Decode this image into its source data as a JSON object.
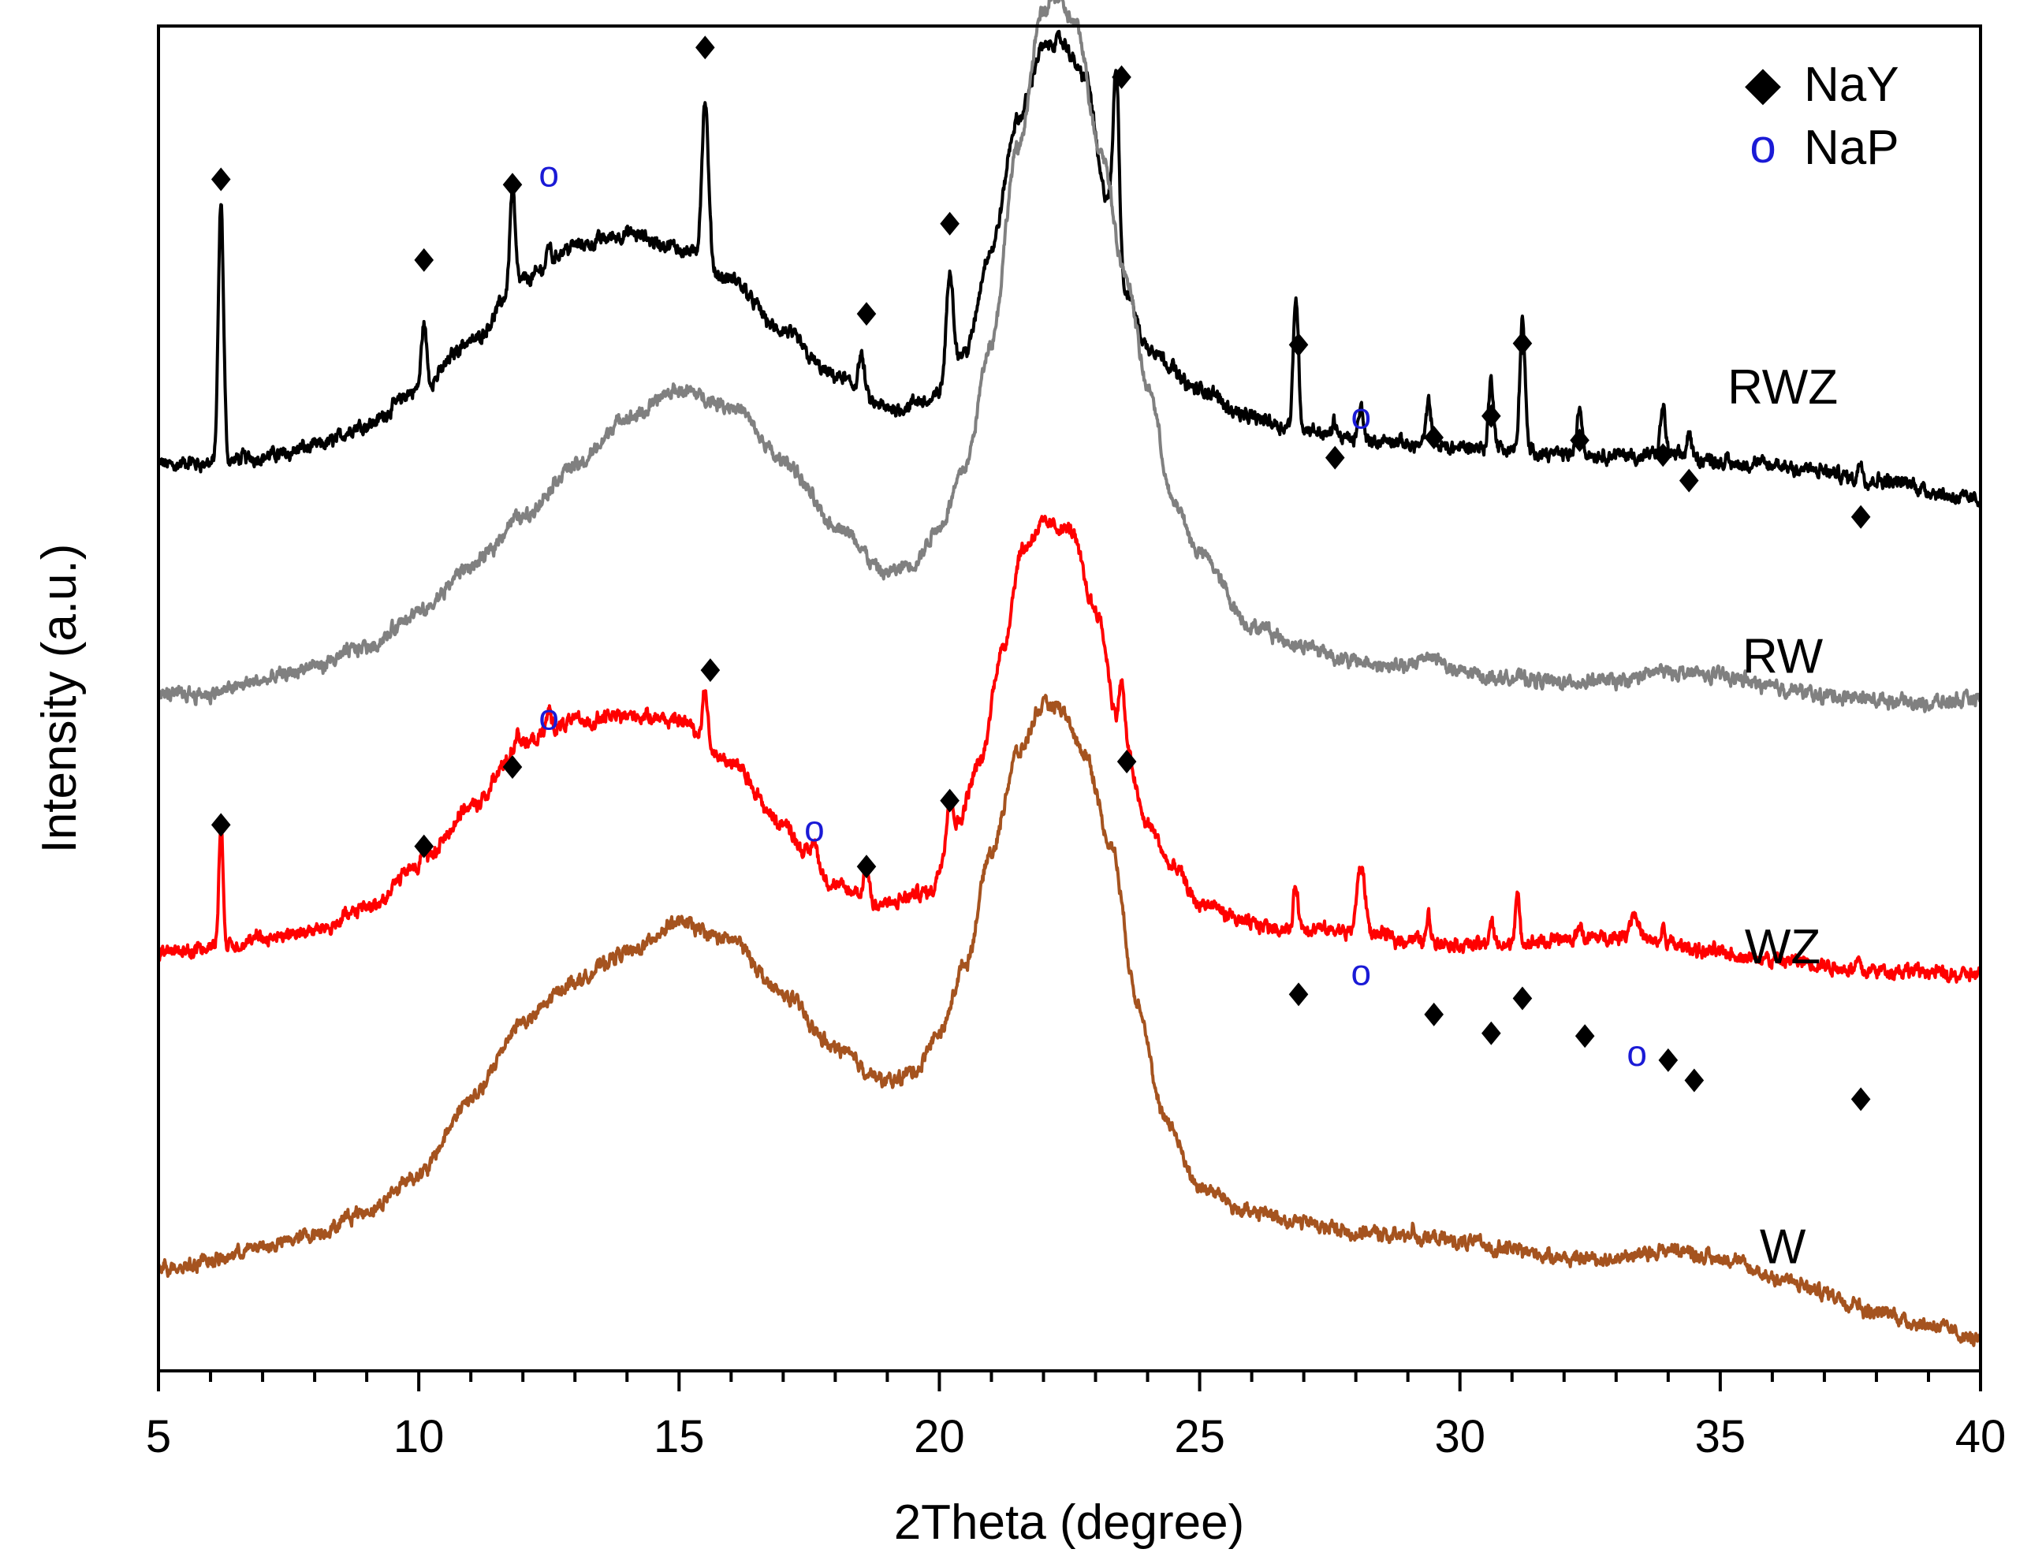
{
  "chart_data": {
    "type": "line",
    "title": "",
    "xlabel": "2Theta (degree)",
    "ylabel": "Intensity (a.u.)",
    "xlim": [
      5,
      40
    ],
    "ylim": [
      0,
      100
    ],
    "x_ticks": [
      5,
      10,
      15,
      20,
      25,
      30,
      35,
      40
    ],
    "x_tick_labels": [
      "5",
      "10",
      "15",
      "20",
      "25",
      "30",
      "35",
      "40"
    ],
    "y_ticks_shown": false,
    "grid": false,
    "legend": {
      "position": "top-right",
      "entries": [
        {
          "symbol": "◆",
          "label": "NaY",
          "color": "#000000"
        },
        {
          "symbol": "o",
          "label": "NaP",
          "color": "#1a1ad6"
        }
      ]
    },
    "series": [
      {
        "name": "RWZ",
        "color": "#000000",
        "baseline": 67.4,
        "base": [
          [
            5,
            0
          ],
          [
            6,
            0.1
          ],
          [
            7,
            0.6
          ],
          [
            8,
            1.3
          ],
          [
            9,
            3.0
          ],
          [
            10,
            5.5
          ],
          [
            11,
            9.2
          ],
          [
            12,
            13.7
          ],
          [
            13,
            16.3
          ],
          [
            14,
            17.1
          ],
          [
            15,
            16.1
          ],
          [
            16,
            13.7
          ],
          [
            17,
            9.8
          ],
          [
            18,
            6.5
          ],
          [
            19,
            4.1
          ],
          [
            19.8,
            4.7
          ],
          [
            20.5,
            8.4
          ],
          [
            21,
            16.1
          ],
          [
            21.5,
            25.5
          ],
          [
            22,
            31.0
          ],
          [
            22.3,
            31.5
          ],
          [
            22.8,
            28.9
          ],
          [
            23.2,
            20.0
          ],
          [
            23.6,
            12.7
          ],
          [
            24,
            8.7
          ],
          [
            25,
            5.5
          ],
          [
            26,
            3.5
          ],
          [
            27,
            2.6
          ],
          [
            28,
            1.8
          ],
          [
            30,
            1.3
          ],
          [
            32,
            0.8
          ],
          [
            34,
            0.6
          ],
          [
            36,
            -0.1
          ],
          [
            38,
            -1.1
          ],
          [
            40,
            -2.6
          ]
        ],
        "peaks": [
          [
            6.2,
            19.2,
            0.07
          ],
          [
            10.1,
            4.9,
            0.07
          ],
          [
            11.8,
            7.4,
            0.07
          ],
          [
            12.5,
            1.5,
            0.05
          ],
          [
            15.5,
            12.0,
            0.09
          ],
          [
            18.5,
            2.8,
            0.08
          ],
          [
            20.2,
            7.5,
            0.09
          ],
          [
            23.4,
            13.0,
            0.08
          ],
          [
            26.85,
            9.9,
            0.07
          ],
          [
            27.6,
            1.1,
            0.05
          ],
          [
            28.1,
            2.4,
            0.07
          ],
          [
            29.4,
            3.0,
            0.07
          ],
          [
            30.6,
            5.0,
            0.07
          ],
          [
            31.2,
            9.8,
            0.07
          ],
          [
            32.3,
            3.4,
            0.07
          ],
          [
            33.9,
            3.6,
            0.07
          ],
          [
            34.4,
            1.8,
            0.06
          ],
          [
            37.7,
            1.3,
            0.06
          ]
        ]
      },
      {
        "name": "RW",
        "color": "#808080",
        "baseline": 50.3,
        "base": [
          [
            5,
            0
          ],
          [
            6,
            0.1
          ],
          [
            7,
            1.0
          ],
          [
            8,
            2.0
          ],
          [
            9,
            3.6
          ],
          [
            10,
            6.0
          ],
          [
            11,
            9.5
          ],
          [
            12,
            13.3
          ],
          [
            13,
            17.0
          ],
          [
            14,
            20.5
          ],
          [
            15,
            22.6
          ],
          [
            16,
            21.5
          ],
          [
            17,
            17.4
          ],
          [
            18,
            12.6
          ],
          [
            19,
            9.0
          ],
          [
            19.5,
            9.7
          ],
          [
            20,
            12.5
          ],
          [
            20.5,
            17.1
          ],
          [
            21,
            26.3
          ],
          [
            21.5,
            40.5
          ],
          [
            22,
            50.8
          ],
          [
            22.2,
            52.0
          ],
          [
            22.6,
            49.9
          ],
          [
            23.1,
            40.5
          ],
          [
            23.6,
            30.8
          ],
          [
            24,
            22.9
          ],
          [
            24.5,
            14.2
          ],
          [
            25,
            10.5
          ],
          [
            26,
            5.1
          ],
          [
            27,
            3.6
          ],
          [
            28,
            2.4
          ],
          [
            29,
            2.0
          ],
          [
            29.4,
            3.0
          ],
          [
            30,
            1.6
          ],
          [
            31,
            1.2
          ],
          [
            32,
            0.9
          ],
          [
            33,
            1.0
          ],
          [
            34,
            1.7
          ],
          [
            35,
            1.4
          ],
          [
            36,
            0.6
          ],
          [
            37,
            -0.1
          ],
          [
            38,
            -0.4
          ],
          [
            39,
            -0.6
          ],
          [
            40,
            -0.5
          ]
        ],
        "peaks": []
      },
      {
        "name": "WZ",
        "color": "#ff0000",
        "baseline": 31.1,
        "base": [
          [
            5,
            0
          ],
          [
            6,
            0.4
          ],
          [
            7,
            1.0
          ],
          [
            8,
            1.7
          ],
          [
            9,
            3.3
          ],
          [
            10,
            6.4
          ],
          [
            11,
            10.8
          ],
          [
            12,
            15.5
          ],
          [
            13,
            17.2
          ],
          [
            14,
            17.7
          ],
          [
            15,
            17.3
          ],
          [
            16,
            14.1
          ],
          [
            17,
            9.5
          ],
          [
            17.5,
            7.3
          ],
          [
            18,
            4.8
          ],
          [
            19,
            3.6
          ],
          [
            19.8,
            4.5
          ],
          [
            20.3,
            9.4
          ],
          [
            20.8,
            14.3
          ],
          [
            21.2,
            22.5
          ],
          [
            21.6,
            30.1
          ],
          [
            22,
            31.9
          ],
          [
            22.5,
            31.5
          ],
          [
            23,
            25.6
          ],
          [
            23.5,
            16.1
          ],
          [
            24,
            9.5
          ],
          [
            24.5,
            6.2
          ],
          [
            25,
            3.6
          ],
          [
            26,
            2.1
          ],
          [
            27,
            1.7
          ],
          [
            28,
            1.5
          ],
          [
            29,
            1.0
          ],
          [
            30,
            0.6
          ],
          [
            31,
            0.6
          ],
          [
            32,
            0.9
          ],
          [
            33,
            1.2
          ],
          [
            34,
            0.6
          ],
          [
            35,
            0.0
          ],
          [
            36,
            -0.6
          ],
          [
            38,
            -1.3
          ],
          [
            40,
            -1.7
          ]
        ],
        "peaks": [
          [
            6.2,
            8.8,
            0.06
          ],
          [
            10.1,
            1.9,
            0.06
          ],
          [
            11.9,
            1.3,
            0.06
          ],
          [
            12.5,
            1.6,
            0.07
          ],
          [
            15.5,
            4.0,
            0.07
          ],
          [
            17.6,
            1.3,
            0.08
          ],
          [
            18.6,
            2.4,
            0.07
          ],
          [
            20.2,
            3.1,
            0.08
          ],
          [
            23.5,
            4.2,
            0.07
          ],
          [
            26.85,
            3.4,
            0.06
          ],
          [
            28.1,
            4.9,
            0.11
          ],
          [
            29.4,
            1.9,
            0.06
          ],
          [
            30.6,
            1.7,
            0.06
          ],
          [
            31.1,
            3.6,
            0.06
          ],
          [
            32.3,
            1.2,
            0.06
          ],
          [
            33.35,
            2.0,
            0.12
          ],
          [
            33.9,
            1.3,
            0.05
          ],
          [
            37.65,
            0.9,
            0.05
          ]
        ]
      },
      {
        "name": "W",
        "color": "#a5531f",
        "baseline": 7.6,
        "base": [
          [
            5,
            0
          ],
          [
            6,
            0.6
          ],
          [
            7,
            1.6
          ],
          [
            8,
            2.6
          ],
          [
            9,
            4.3
          ],
          [
            10,
            7.0
          ],
          [
            11,
            12.6
          ],
          [
            12,
            18.4
          ],
          [
            13,
            21.4
          ],
          [
            14,
            23.5
          ],
          [
            15,
            25.7
          ],
          [
            16,
            24.4
          ],
          [
            17,
            20.4
          ],
          [
            18,
            16.4
          ],
          [
            19,
            13.9
          ],
          [
            19.5,
            14.6
          ],
          [
            20,
            17.4
          ],
          [
            20.5,
            22.7
          ],
          [
            21,
            31.1
          ],
          [
            21.5,
            38.3
          ],
          [
            22,
            41.8
          ],
          [
            22.3,
            41.6
          ],
          [
            22.8,
            38.3
          ],
          [
            23.3,
            31.4
          ],
          [
            23.8,
            20.0
          ],
          [
            24.3,
            11.3
          ],
          [
            25,
            6.1
          ],
          [
            26,
            4.2
          ],
          [
            27,
            3.4
          ],
          [
            28,
            2.7
          ],
          [
            29,
            2.4
          ],
          [
            30,
            2.0
          ],
          [
            31,
            1.5
          ],
          [
            32,
            0.8
          ],
          [
            33,
            0.8
          ],
          [
            34,
            1.4
          ],
          [
            35,
            0.8
          ],
          [
            36,
            -0.6
          ],
          [
            37,
            -1.8
          ],
          [
            38,
            -3.2
          ],
          [
            39,
            -4.1
          ],
          [
            40,
            -5.3
          ]
        ],
        "peaks": [
          [
            29.1,
            0.7,
            0.06
          ],
          [
            37.6,
            0.7,
            0.05
          ]
        ]
      }
    ],
    "curve_labels": [
      {
        "text": "RWZ",
        "x": 36.2,
        "y": 73.2
      },
      {
        "text": "RW",
        "x": 36.2,
        "y": 53.2
      },
      {
        "text": "WZ",
        "x": 36.2,
        "y": 31.6
      },
      {
        "text": "W",
        "x": 36.2,
        "y": 9.3
      }
    ],
    "annotations": {
      "NaY": [
        [
          6.2,
          88.6
        ],
        [
          10.1,
          82.6
        ],
        [
          11.8,
          88.2
        ],
        [
          15.5,
          98.4
        ],
        [
          18.6,
          78.6
        ],
        [
          20.2,
          85.3
        ],
        [
          23.5,
          96.2
        ],
        [
          26.9,
          76.3
        ],
        [
          27.6,
          67.9
        ],
        [
          29.5,
          69.4
        ],
        [
          30.6,
          71.0
        ],
        [
          31.2,
          76.4
        ],
        [
          32.3,
          69.2
        ],
        [
          33.9,
          68.1
        ],
        [
          34.4,
          66.2
        ],
        [
          37.7,
          63.5
        ],
        [
          6.2,
          40.6
        ],
        [
          10.1,
          39.0
        ],
        [
          11.8,
          44.9
        ],
        [
          15.6,
          52.1
        ],
        [
          18.6,
          37.5
        ],
        [
          20.2,
          42.4
        ],
        [
          23.6,
          45.3
        ],
        [
          26.9,
          28.0
        ],
        [
          29.5,
          26.5
        ],
        [
          30.6,
          25.1
        ],
        [
          31.2,
          27.7
        ],
        [
          32.4,
          24.9
        ],
        [
          34.0,
          23.1
        ],
        [
          34.5,
          21.6
        ],
        [
          37.7,
          20.2
        ]
      ],
      "NaP": [
        [
          12.5,
          88.9
        ],
        [
          28.1,
          70.9
        ],
        [
          12.5,
          48.5
        ],
        [
          17.6,
          40.2
        ],
        [
          28.1,
          29.5
        ],
        [
          33.4,
          23.5
        ]
      ]
    }
  }
}
